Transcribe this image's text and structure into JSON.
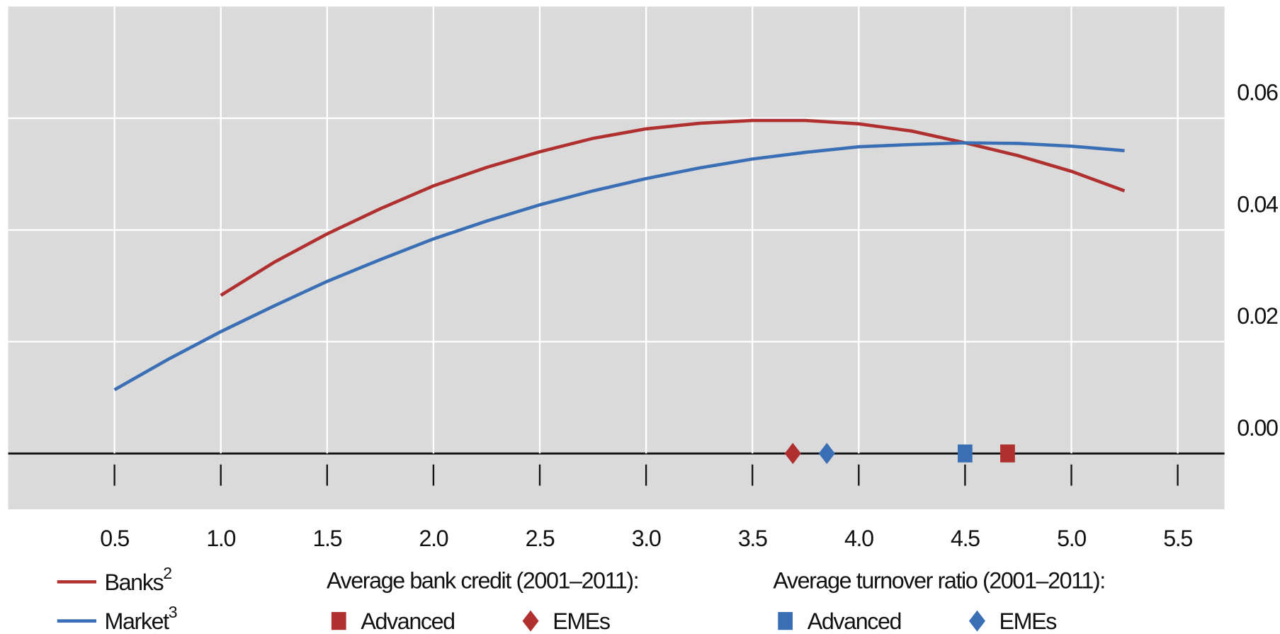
{
  "chart_data": {
    "type": "line",
    "x": [
      0.5,
      0.75,
      1.0,
      1.25,
      1.5,
      1.75,
      2.0,
      2.25,
      2.5,
      2.75,
      3.0,
      3.25,
      3.5,
      3.75,
      4.0,
      4.25,
      4.5,
      4.75,
      5.0,
      5.25
    ],
    "series": [
      {
        "name": "Banks",
        "note": "2",
        "color": "#b03030",
        "values": [
          null,
          null,
          0.0283,
          0.0342,
          0.0393,
          0.0438,
          0.0479,
          0.0512,
          0.054,
          0.0564,
          0.0581,
          0.0591,
          0.0596,
          0.0596,
          0.059,
          0.0577,
          0.0556,
          0.0533,
          0.0505,
          0.047
        ]
      },
      {
        "name": "Market",
        "note": "3",
        "color": "#3a6fb5",
        "values": [
          0.0114,
          0.0168,
          0.0218,
          0.0264,
          0.0308,
          0.0347,
          0.0384,
          0.0416,
          0.0445,
          0.047,
          0.0492,
          0.0511,
          0.0527,
          0.0539,
          0.0549,
          0.0553,
          0.0556,
          0.0555,
          0.055,
          0.0542
        ]
      }
    ],
    "markers": [
      {
        "title": "Average bank credit (2001–2011):",
        "items": [
          {
            "name": "Advanced",
            "shape": "square",
            "color": "#b03030",
            "x": 4.7,
            "y": 0
          },
          {
            "name": "EMEs",
            "shape": "diamond",
            "color": "#b03030",
            "x": 3.69,
            "y": 0
          }
        ]
      },
      {
        "title": "Average turnover ratio (2001–2011):",
        "items": [
          {
            "name": "Advanced",
            "shape": "square",
            "color": "#3a6fb5",
            "x": 4.5,
            "y": 0
          },
          {
            "name": "EMEs",
            "shape": "diamond",
            "color": "#3a6fb5",
            "x": 3.85,
            "y": 0
          }
        ]
      }
    ],
    "xlim": [
      0,
      5.72
    ],
    "ylim": [
      -0.01,
      0.08
    ],
    "xticks": [
      0.5,
      {
        "value": 1.0,
        "label": "1.0"
      },
      1.5,
      {
        "value": 2.0,
        "label": "2.0"
      },
      2.5,
      {
        "value": 3.0,
        "label": "3.0"
      },
      3.5,
      {
        "value": 4.0,
        "label": "4.0"
      },
      4.5,
      {
        "value": 5.0,
        "label": "5.0"
      },
      5.5
    ],
    "yticks": [
      {
        "value": 0,
        "label": "0.00"
      },
      {
        "value": 0.02,
        "label": "0.02"
      },
      {
        "value": 0.04,
        "label": "0.04"
      },
      {
        "value": 0.06,
        "label": "0.06"
      }
    ],
    "grid": true
  }
}
